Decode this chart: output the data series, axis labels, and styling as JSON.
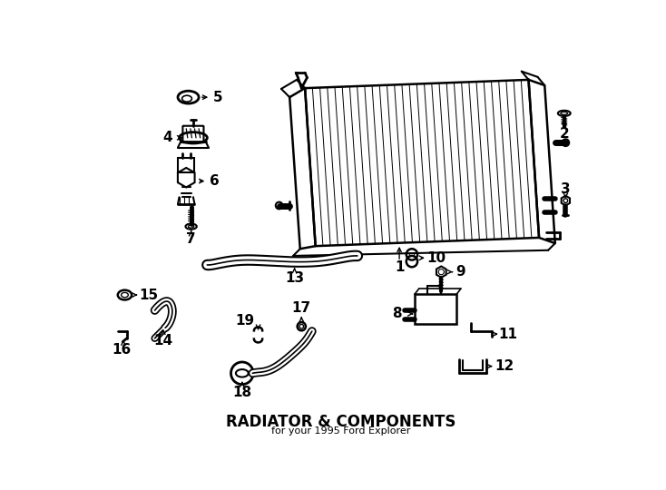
{
  "title": "RADIATOR & COMPONENTS",
  "subtitle": "for your 1995 Ford Explorer",
  "bg_color": "#ffffff",
  "line_color": "#000000",
  "text_color": "#000000",
  "figsize": [
    7.34,
    5.4
  ],
  "dpi": 100
}
